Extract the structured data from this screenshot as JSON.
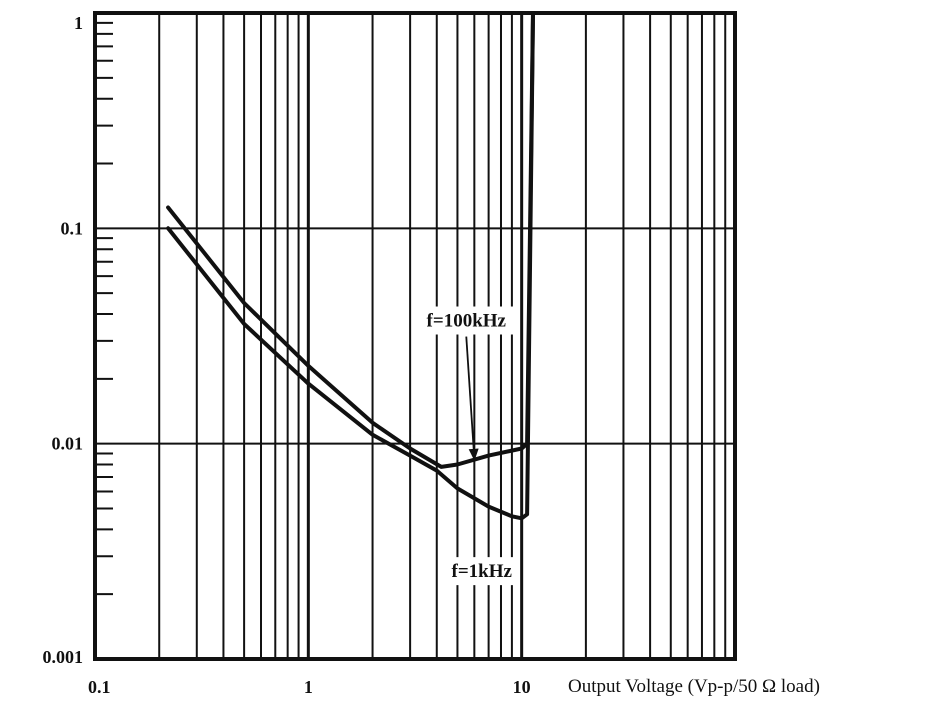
{
  "chart_data": {
    "type": "line",
    "title": "",
    "xlabel": "Output Voltage (Vp-p/50 Ω load)",
    "ylabel": "",
    "x_scale": "log",
    "y_scale": "log",
    "xlim": [
      0.1,
      100
    ],
    "ylim": [
      0.001,
      1
    ],
    "grid": true,
    "x_tick_labels": [
      {
        "value": 0.1,
        "label": "0.1"
      },
      {
        "value": 1,
        "label": "1"
      },
      {
        "value": 10,
        "label": "10"
      }
    ],
    "y_tick_labels": [
      {
        "value": 1,
        "label": "1"
      },
      {
        "value": 0.1,
        "label": "0.1"
      },
      {
        "value": 0.01,
        "label": "0.01"
      },
      {
        "value": 0.001,
        "label": "0.001"
      }
    ],
    "series": [
      {
        "name": "f=100kHz",
        "points": [
          [
            0.22,
            0.125
          ],
          [
            0.3,
            0.085
          ],
          [
            0.5,
            0.045
          ],
          [
            1,
            0.023
          ],
          [
            2,
            0.0125
          ],
          [
            3,
            0.0095
          ],
          [
            4.2,
            0.0078
          ],
          [
            5,
            0.008
          ],
          [
            7,
            0.0088
          ],
          [
            10,
            0.0095
          ],
          [
            10.6,
            0.01
          ],
          [
            11.3,
            1
          ]
        ]
      },
      {
        "name": "f=1kHz",
        "points": [
          [
            0.22,
            0.1
          ],
          [
            0.3,
            0.068
          ],
          [
            0.5,
            0.036
          ],
          [
            1,
            0.019
          ],
          [
            2,
            0.011
          ],
          [
            3,
            0.0088
          ],
          [
            4,
            0.0075
          ],
          [
            5,
            0.0062
          ],
          [
            7,
            0.0051
          ],
          [
            9,
            0.0046
          ],
          [
            10,
            0.0045
          ],
          [
            10.6,
            0.0047
          ],
          [
            11.3,
            1
          ]
        ]
      }
    ],
    "annotations": [
      {
        "text": "f=100kHz",
        "x": 5.5,
        "y": 0.035,
        "arrow_to": [
          6,
          0.0085
        ]
      },
      {
        "text": "f=1kHz",
        "x": 6.5,
        "y": 0.0024
      }
    ]
  }
}
